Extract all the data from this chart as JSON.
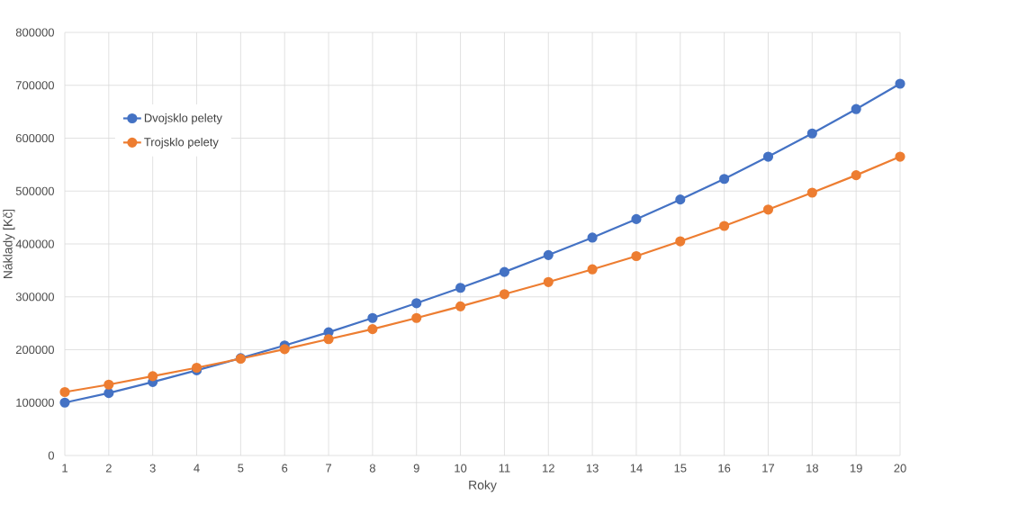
{
  "chart_data": {
    "type": "line",
    "xlabel": "Roky",
    "ylabel": "Náklady [Kč]",
    "x": [
      1,
      2,
      3,
      4,
      5,
      6,
      7,
      8,
      9,
      10,
      11,
      12,
      13,
      14,
      15,
      16,
      17,
      18,
      19,
      20
    ],
    "xlim": [
      1,
      20
    ],
    "xticks": [
      1,
      2,
      3,
      4,
      5,
      6,
      7,
      8,
      9,
      10,
      11,
      12,
      13,
      14,
      15,
      16,
      17,
      18,
      19,
      20
    ],
    "ylim": [
      0,
      800000
    ],
    "yticks": [
      0,
      100000,
      200000,
      300000,
      400000,
      500000,
      600000,
      700000,
      800000
    ],
    "series": [
      {
        "name": "Dvojsklo pelety",
        "color": "#4472c4",
        "values": [
          100000,
          118000,
          139000,
          161000,
          184000,
          208000,
          233000,
          260000,
          288000,
          317000,
          347000,
          379000,
          412000,
          447000,
          484000,
          523000,
          565000,
          609000,
          655000,
          703000
        ]
      },
      {
        "name": "Trojsklo pelety",
        "color": "#ed7d31",
        "values": [
          120000,
          134000,
          150000,
          166000,
          183000,
          201000,
          220000,
          239000,
          260000,
          282000,
          305000,
          328000,
          352000,
          377000,
          405000,
          434000,
          465000,
          497000,
          530000,
          565000
        ]
      }
    ],
    "grid": true,
    "legend": "top left",
    "marker": "circle",
    "line_style": "solid"
  }
}
